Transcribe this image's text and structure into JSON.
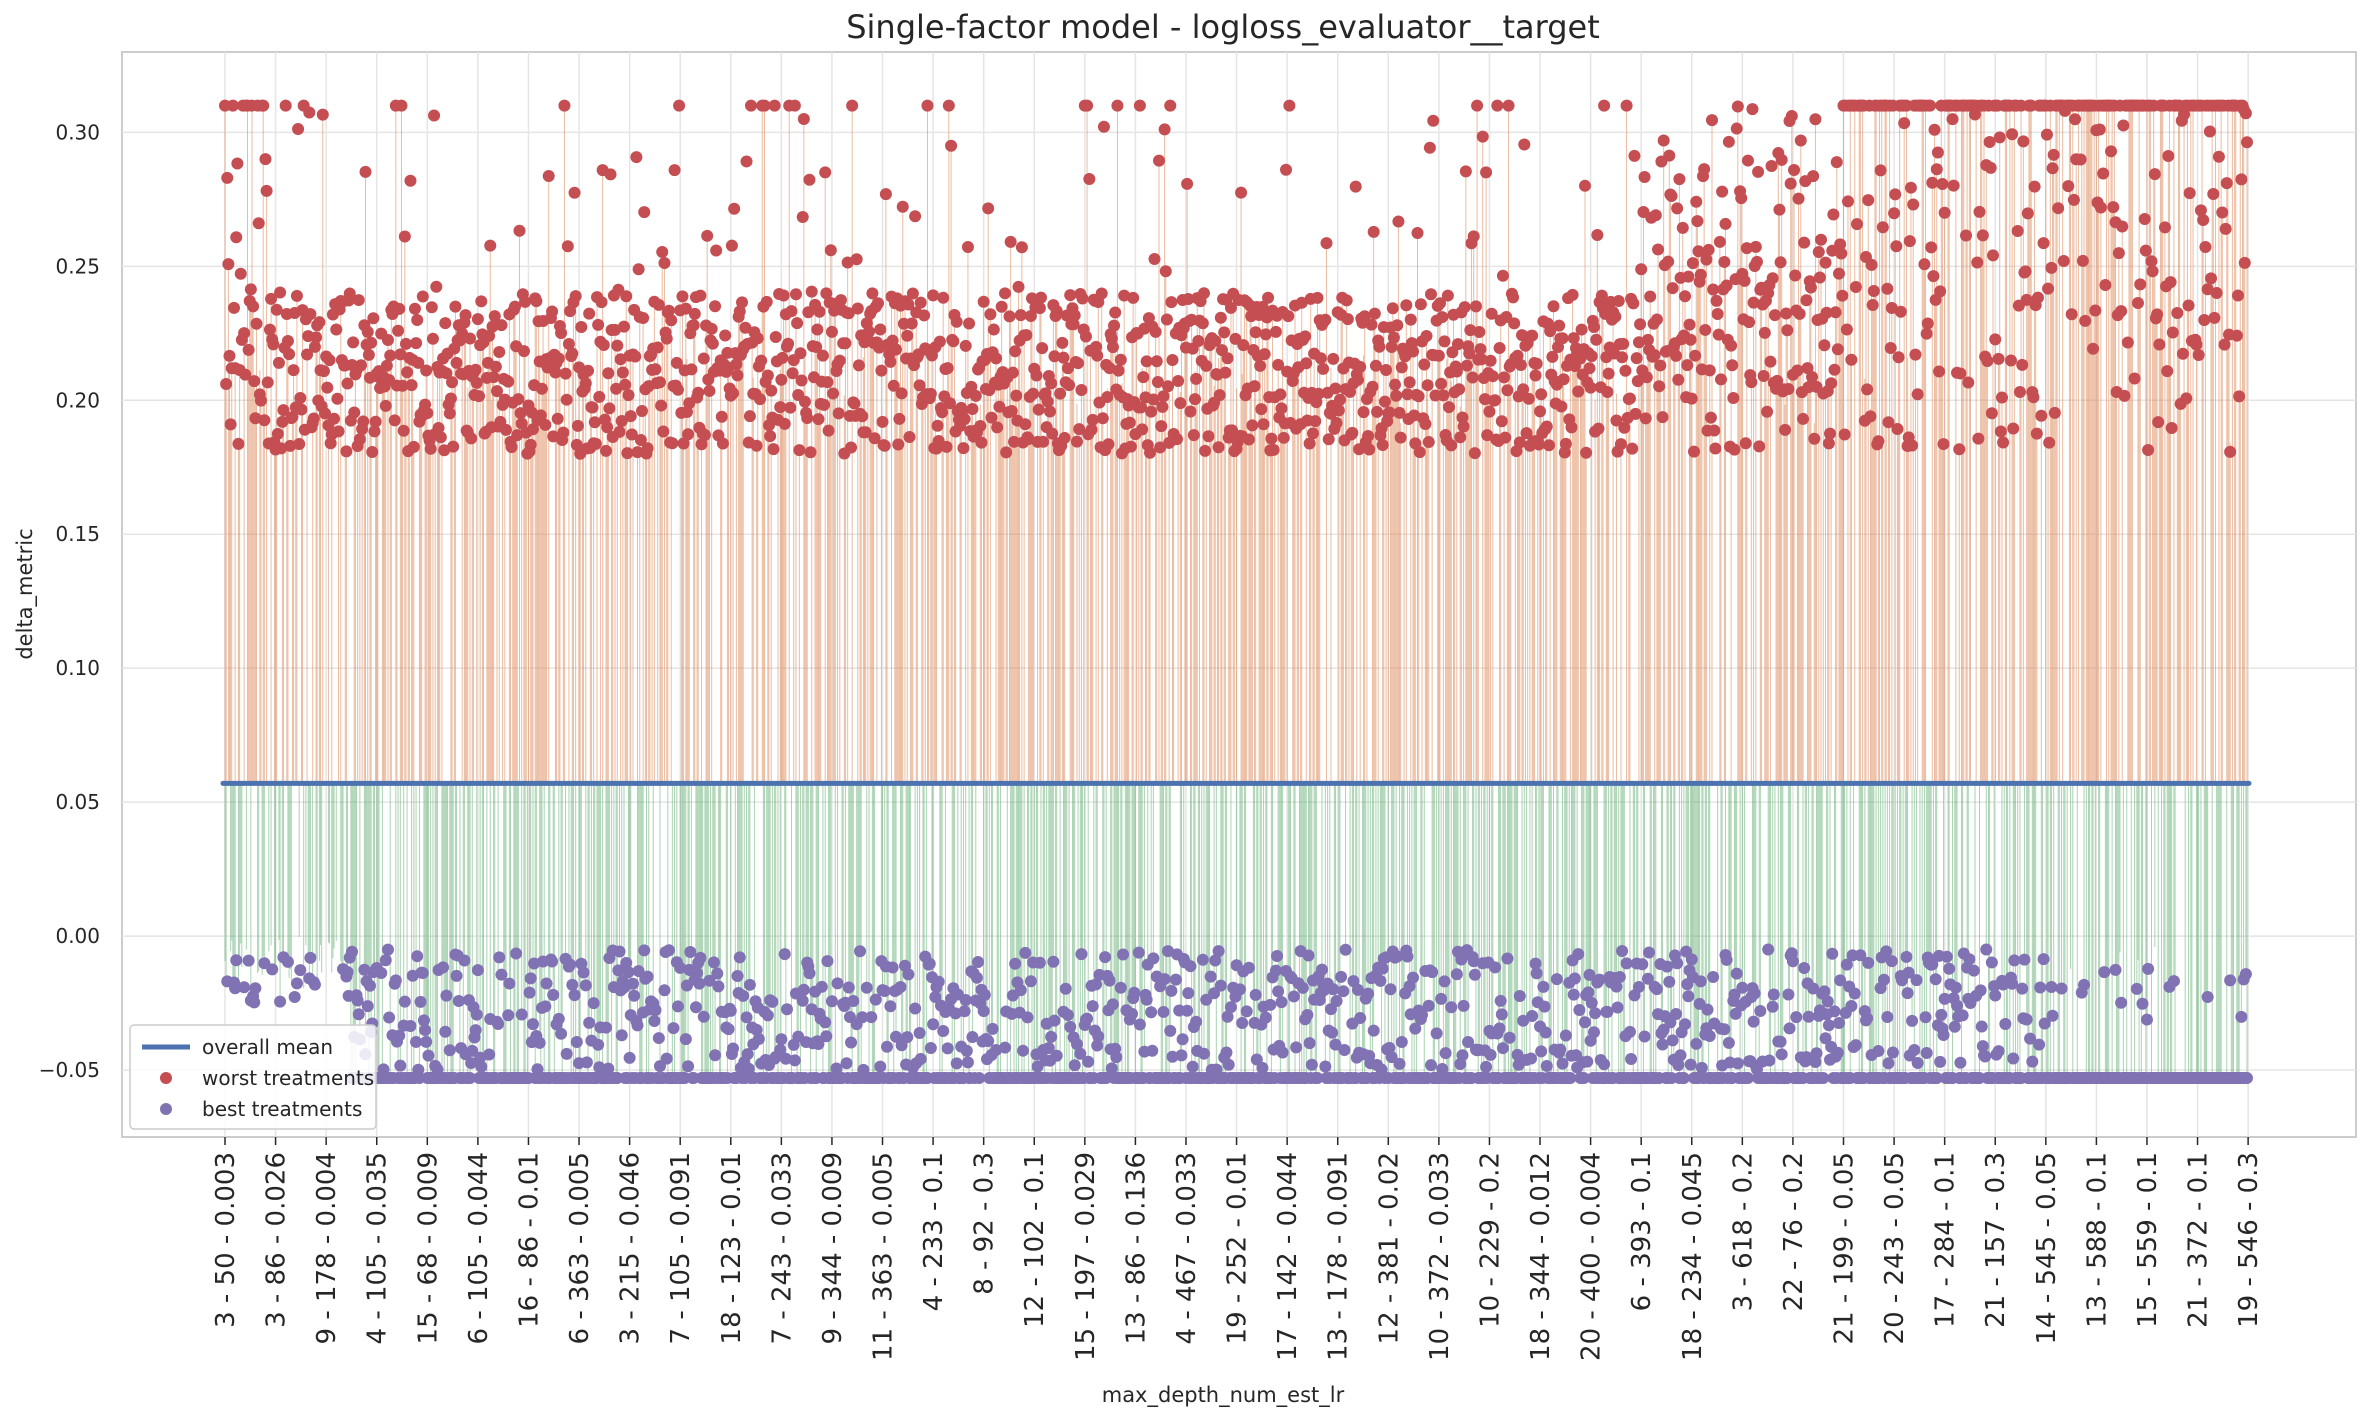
{
  "chart_data": {
    "type": "scatter",
    "title": "Single-factor model - logloss_evaluator__target",
    "xlabel": "max_depth_num_est_lr",
    "ylabel": "delta_metric",
    "ylim": [
      -0.075,
      0.33
    ],
    "yticks": [
      -0.05,
      0.0,
      0.05,
      0.1,
      0.15,
      0.2,
      0.25,
      0.3
    ],
    "ytick_labels": [
      "−0.05",
      "0.00",
      "0.05",
      "0.10",
      "0.15",
      "0.20",
      "0.25",
      "0.30"
    ],
    "grid": true,
    "legend_position": "lower-left",
    "overall_mean": 0.057,
    "n_treatments": 1800,
    "x_tick_every": 45,
    "categories_labeled": [
      "3 - 50 - 0.003",
      "3 - 86 - 0.026",
      "9 - 178 - 0.004",
      "4 - 105 - 0.035",
      "15 - 68 - 0.009",
      "6 - 105 - 0.044",
      "16 - 86 - 0.01",
      "6 - 363 - 0.005",
      "3 - 215 - 0.046",
      "7 - 105 - 0.091",
      "18 - 123 - 0.01",
      "7 - 243 - 0.033",
      "9 - 344 - 0.009",
      "11 - 363 - 0.005",
      "4 - 233 - 0.1",
      "8 - 92 - 0.3",
      "12 - 102 - 0.1",
      "15 - 197 - 0.029",
      "13 - 86 - 0.136",
      "4 - 467 - 0.033",
      "19 - 252 - 0.01",
      "17 - 142 - 0.044",
      "13 - 178 - 0.091",
      "12 - 381 - 0.02",
      "10 - 372 - 0.033",
      "10 - 229 - 0.2",
      "18 - 344 - 0.012",
      "20 - 400 - 0.004",
      "6 - 393 - 0.1",
      "18 - 234 - 0.045",
      "3 - 618 - 0.2",
      "22 - 76 - 0.2",
      "21 - 199 - 0.05",
      "20 - 243 - 0.05",
      "17 - 284 - 0.1",
      "21 - 157 - 0.3",
      "14 - 545 - 0.05",
      "13 - 588 - 0.1",
      "15 - 559 - 0.1",
      "21 - 372 - 0.1",
      "19 - 546 - 0.3"
    ],
    "series": [
      {
        "name": "overall mean",
        "type": "line",
        "color": "#4c72b0"
      },
      {
        "name": "worst treatments",
        "type": "scatter",
        "color": "#c44e52",
        "y_range": [
          0.18,
          0.31
        ],
        "cap": 0.31,
        "connector_color": "#dd8452"
      },
      {
        "name": "best treatments",
        "type": "scatter",
        "color": "#8172b3",
        "y_range": [
          -0.053,
          -0.005
        ],
        "floor": -0.053,
        "connector_color": "#55a868"
      }
    ]
  }
}
